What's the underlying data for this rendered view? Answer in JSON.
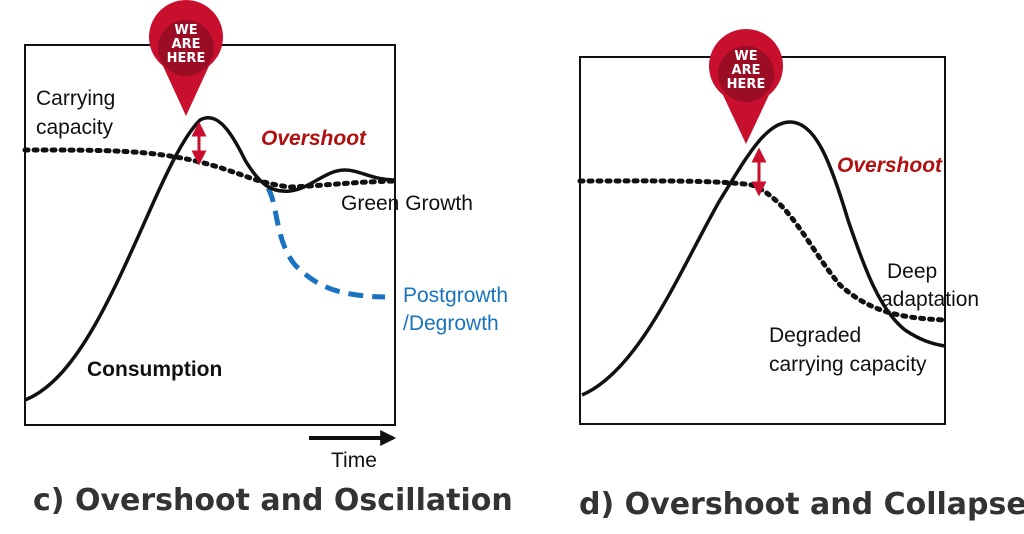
{
  "panel_c": {
    "title": "c) Overshoot and Oscillation",
    "pin": {
      "line1": "WE",
      "line2": "ARE",
      "line3": "HERE"
    },
    "labels": {
      "carrying_capacity_1": "Carrying",
      "carrying_capacity_2": "capacity",
      "overshoot": "Overshoot",
      "green_growth": "Green Growth",
      "postgrowth_1": "Postgrowth",
      "postgrowth_2": "/Degrowth",
      "consumption": "Consumption",
      "time": "Time"
    }
  },
  "panel_d": {
    "title": "d) Overshoot and Collapse",
    "pin": {
      "line1": "WE",
      "line2": "ARE",
      "line3": "HERE"
    },
    "labels": {
      "overshoot": "Overshoot",
      "deep_1": "Deep",
      "deep_2": "adaptation",
      "degraded_1": "Degraded",
      "degraded_2": "carrying capacity"
    }
  },
  "colors": {
    "line": "#111111",
    "pin": "#c8102e",
    "pin_dark": "#9b0d24",
    "overshoot_text": "#b01010",
    "arrow": "#c8102e",
    "postgrowth": "#1a73c0",
    "title": "#333333"
  }
}
